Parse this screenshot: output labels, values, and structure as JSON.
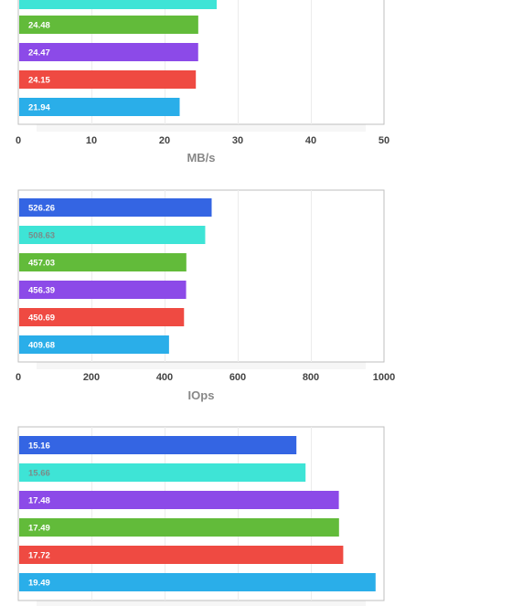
{
  "chart_data": [
    {
      "type": "bar",
      "orientation": "horizontal",
      "xlabel": "MB/s",
      "xlim": [
        0,
        50
      ],
      "ticks": [
        "0",
        "10",
        "20",
        "30",
        "40",
        "50"
      ],
      "grid": true,
      "bars": [
        {
          "value": 27.0,
          "label": "",
          "color": "#3ee4d6",
          "text_color": "#ffffff"
        },
        {
          "value": 24.48,
          "label": "24.48",
          "color": "#62bb3a",
          "text_color": "#ffffff"
        },
        {
          "value": 24.47,
          "label": "24.47",
          "color": "#8c4ae8",
          "text_color": "#ffffff"
        },
        {
          "value": 24.15,
          "label": "24.15",
          "color": "#ef4a42",
          "text_color": "#ffffff"
        },
        {
          "value": 21.94,
          "label": "21.94",
          "color": "#2aaee9",
          "text_color": "#ffffff"
        }
      ]
    },
    {
      "type": "bar",
      "orientation": "horizontal",
      "xlabel": "IOps",
      "xlim": [
        0,
        1000
      ],
      "ticks": [
        "0",
        "200",
        "400",
        "600",
        "800",
        "1000"
      ],
      "grid": true,
      "bars": [
        {
          "value": 526.26,
          "label": "526.26",
          "color": "#3465e3",
          "text_color": "#ffffff"
        },
        {
          "value": 508.63,
          "label": "508.63",
          "color": "#3ee4d6",
          "text_color": "#7a8c8a"
        },
        {
          "value": 457.03,
          "label": "457.03",
          "color": "#62bb3a",
          "text_color": "#ffffff"
        },
        {
          "value": 456.39,
          "label": "456.39",
          "color": "#8c4ae8",
          "text_color": "#ffffff"
        },
        {
          "value": 450.69,
          "label": "450.69",
          "color": "#ef4a42",
          "text_color": "#ffffff"
        },
        {
          "value": 409.68,
          "label": "409.68",
          "color": "#2aaee9",
          "text_color": "#ffffff"
        }
      ]
    },
    {
      "type": "bar",
      "orientation": "horizontal",
      "xlabel": "",
      "xlim": [
        0,
        20
      ],
      "ticks": [],
      "grid": true,
      "bars": [
        {
          "value": 15.16,
          "label": "15.16",
          "color": "#3465e3",
          "text_color": "#ffffff"
        },
        {
          "value": 15.66,
          "label": "15.66",
          "color": "#3ee4d6",
          "text_color": "#7a8c8a"
        },
        {
          "value": 17.48,
          "label": "17.48",
          "color": "#8c4ae8",
          "text_color": "#ffffff"
        },
        {
          "value": 17.49,
          "label": "17.49",
          "color": "#62bb3a",
          "text_color": "#ffffff"
        },
        {
          "value": 17.72,
          "label": "17.72",
          "color": "#ef4a42",
          "text_color": "#ffffff"
        },
        {
          "value": 19.49,
          "label": "19.49",
          "color": "#2aaee9",
          "text_color": "#ffffff"
        }
      ]
    }
  ]
}
